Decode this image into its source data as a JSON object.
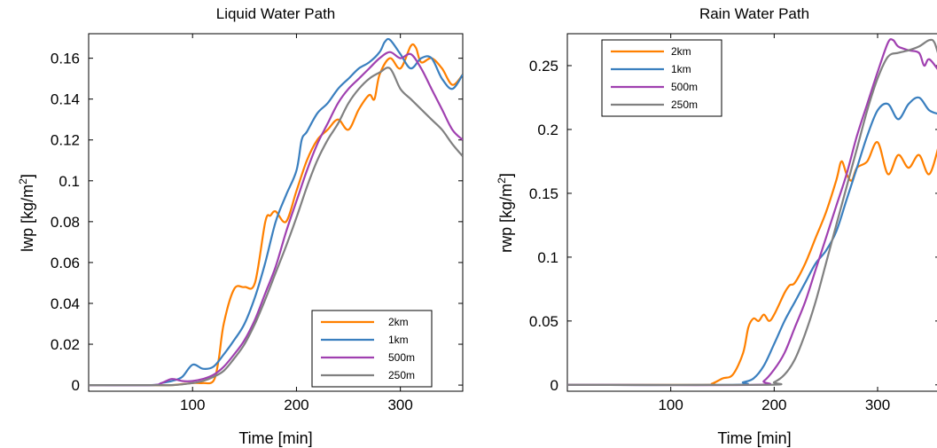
{
  "colors": {
    "2km": "#ff8000",
    "1km": "#3a7fbf",
    "500m": "#a040b0",
    "250m": "#808080"
  },
  "chart_data": [
    {
      "type": "line",
      "title": "Liquid Water Path",
      "xlabel": "Time [min]",
      "ylabel_main": "lwp [kg/m",
      "ylabel_sup": "2",
      "ylabel_end": "]",
      "xlim": [
        0,
        360
      ],
      "ylim": [
        -0.003,
        0.172
      ],
      "xticks": [
        100,
        200,
        300
      ],
      "xtick_labels": [
        "100",
        "200",
        "300"
      ],
      "yticks": [
        0,
        0.02,
        0.04,
        0.06,
        0.08,
        0.1,
        0.12,
        0.14,
        0.16
      ],
      "ytick_labels": [
        "0",
        "0.02",
        "0.04",
        "0.06",
        "0.08",
        "0.1",
        "0.12",
        "0.14",
        "0.16"
      ],
      "grid": false,
      "legend_position": "bottom-right",
      "series": [
        {
          "name": "2km",
          "x": [
            0,
            60,
            80,
            100,
            110,
            120,
            125,
            130,
            140,
            150,
            160,
            170,
            175,
            180,
            190,
            200,
            210,
            220,
            230,
            240,
            250,
            260,
            270,
            275,
            280,
            290,
            300,
            310,
            315,
            320,
            330,
            340,
            350,
            360
          ],
          "y": [
            0,
            0,
            0,
            0.001,
            0.001,
            0.002,
            0.012,
            0.03,
            0.047,
            0.048,
            0.05,
            0.08,
            0.083,
            0.085,
            0.08,
            0.095,
            0.11,
            0.12,
            0.125,
            0.13,
            0.125,
            0.135,
            0.142,
            0.14,
            0.152,
            0.16,
            0.155,
            0.166,
            0.165,
            0.158,
            0.16,
            0.155,
            0.147,
            0.152
          ]
        },
        {
          "name": "1km",
          "x": [
            0,
            60,
            70,
            80,
            90,
            100,
            110,
            120,
            130,
            140,
            150,
            160,
            170,
            180,
            190,
            200,
            205,
            210,
            220,
            230,
            240,
            250,
            260,
            270,
            280,
            285,
            290,
            300,
            310,
            320,
            330,
            340,
            350,
            360
          ],
          "y": [
            0,
            0,
            0.001,
            0.002,
            0.004,
            0.01,
            0.008,
            0.009,
            0.015,
            0.022,
            0.03,
            0.043,
            0.06,
            0.08,
            0.093,
            0.105,
            0.12,
            0.124,
            0.133,
            0.138,
            0.145,
            0.15,
            0.155,
            0.158,
            0.163,
            0.168,
            0.169,
            0.162,
            0.155,
            0.16,
            0.16,
            0.15,
            0.145,
            0.152
          ]
        },
        {
          "name": "500m",
          "x": [
            0,
            60,
            70,
            80,
            90,
            100,
            110,
            120,
            130,
            140,
            150,
            160,
            170,
            180,
            190,
            200,
            210,
            220,
            230,
            240,
            250,
            260,
            270,
            280,
            290,
            300,
            310,
            320,
            330,
            340,
            350,
            360
          ],
          "y": [
            0,
            0,
            0.001,
            0.003,
            0.002,
            0.002,
            0.003,
            0.005,
            0.009,
            0.015,
            0.022,
            0.032,
            0.045,
            0.058,
            0.075,
            0.09,
            0.105,
            0.118,
            0.128,
            0.138,
            0.145,
            0.15,
            0.155,
            0.16,
            0.163,
            0.16,
            0.162,
            0.155,
            0.145,
            0.135,
            0.125,
            0.12
          ]
        },
        {
          "name": "250m",
          "x": [
            0,
            60,
            80,
            100,
            110,
            120,
            130,
            140,
            150,
            160,
            170,
            180,
            190,
            200,
            210,
            220,
            230,
            240,
            250,
            260,
            270,
            280,
            290,
            300,
            310,
            320,
            330,
            340,
            350,
            360
          ],
          "y": [
            0,
            0,
            0,
            0.001,
            0.002,
            0.004,
            0.007,
            0.013,
            0.02,
            0.03,
            0.042,
            0.055,
            0.068,
            0.082,
            0.097,
            0.11,
            0.12,
            0.128,
            0.138,
            0.145,
            0.15,
            0.153,
            0.155,
            0.145,
            0.14,
            0.135,
            0.13,
            0.125,
            0.118,
            0.112
          ]
        }
      ]
    },
    {
      "type": "line",
      "title": "Rain Water Path",
      "xlabel": "Time [min]",
      "ylabel_main": "rwp [kg/m",
      "ylabel_sup": "2",
      "ylabel_end": "]",
      "xlim": [
        0,
        360
      ],
      "ylim": [
        -0.005,
        0.275
      ],
      "xticks": [
        100,
        200,
        300
      ],
      "xtick_labels": [
        "100",
        "200",
        "300"
      ],
      "yticks": [
        0,
        0.05,
        0.1,
        0.15,
        0.2,
        0.25
      ],
      "ytick_labels": [
        "0",
        "0.05",
        "0.1",
        "0.15",
        "0.2",
        "0.25"
      ],
      "grid": false,
      "legend_position": "top-left",
      "series": [
        {
          "name": "2km",
          "x": [
            0,
            130,
            140,
            150,
            160,
            170,
            175,
            180,
            185,
            190,
            195,
            200,
            210,
            215,
            220,
            230,
            240,
            250,
            260,
            265,
            270,
            275,
            280,
            290,
            300,
            310,
            320,
            330,
            340,
            350,
            360
          ],
          "y": [
            0,
            0,
            0.001,
            0.005,
            0.008,
            0.025,
            0.045,
            0.052,
            0.05,
            0.055,
            0.05,
            0.055,
            0.072,
            0.078,
            0.08,
            0.095,
            0.115,
            0.135,
            0.16,
            0.175,
            0.165,
            0.16,
            0.17,
            0.175,
            0.19,
            0.165,
            0.18,
            0.17,
            0.18,
            0.165,
            0.19
          ]
        },
        {
          "name": "1km",
          "x": [
            0,
            160,
            170,
            180,
            190,
            200,
            210,
            220,
            230,
            240,
            250,
            260,
            270,
            280,
            290,
            300,
            310,
            320,
            330,
            340,
            350,
            360
          ],
          "y": [
            0,
            0,
            0.002,
            0.005,
            0.015,
            0.032,
            0.05,
            0.065,
            0.08,
            0.095,
            0.105,
            0.12,
            0.145,
            0.17,
            0.195,
            0.215,
            0.22,
            0.208,
            0.22,
            0.225,
            0.215,
            0.212
          ]
        },
        {
          "name": "500m",
          "x": [
            0,
            180,
            190,
            200,
            210,
            220,
            230,
            240,
            250,
            260,
            270,
            280,
            290,
            300,
            310,
            315,
            320,
            330,
            340,
            345,
            350,
            360
          ],
          "y": [
            0,
            0,
            0.003,
            0.012,
            0.025,
            0.045,
            0.065,
            0.09,
            0.115,
            0.14,
            0.165,
            0.195,
            0.22,
            0.245,
            0.268,
            0.27,
            0.265,
            0.262,
            0.26,
            0.25,
            0.255,
            0.245
          ]
        },
        {
          "name": "250m",
          "x": [
            0,
            190,
            200,
            210,
            220,
            230,
            240,
            250,
            260,
            270,
            280,
            290,
            300,
            310,
            320,
            330,
            340,
            350,
            355,
            360
          ],
          "y": [
            0,
            0,
            0.002,
            0.008,
            0.02,
            0.04,
            0.065,
            0.095,
            0.125,
            0.155,
            0.185,
            0.215,
            0.24,
            0.257,
            0.26,
            0.262,
            0.265,
            0.27,
            0.268,
            0.255
          ]
        }
      ]
    }
  ]
}
